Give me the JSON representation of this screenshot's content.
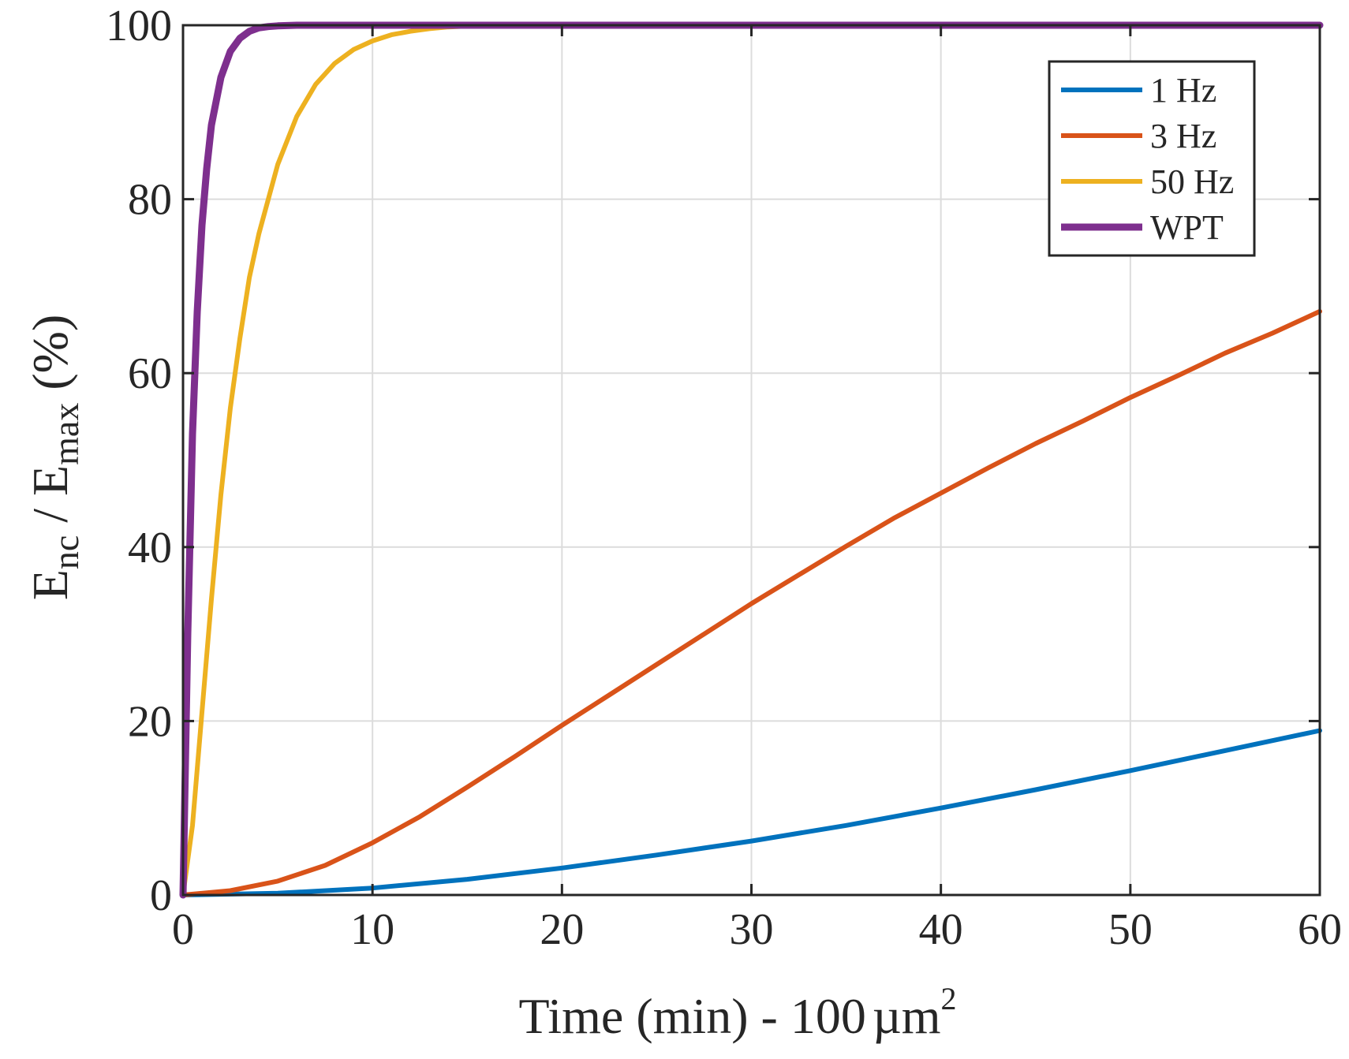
{
  "chart_data": {
    "type": "line",
    "title": "",
    "xlabel": "Time (min) - 100",
    "xlabel_unit": "µm",
    "xlabel_unit_sup": "2",
    "ylabel_main": "E",
    "ylabel_sub1": "nc",
    "ylabel_mid": " / E",
    "ylabel_sub2": "max",
    "ylabel_end": " (%)",
    "xlim": [
      0,
      60
    ],
    "ylim": [
      0,
      100
    ],
    "xticks": [
      0,
      10,
      20,
      30,
      40,
      50,
      60
    ],
    "yticks": [
      0,
      20,
      40,
      60,
      80,
      100
    ],
    "grid": true,
    "legend_position": "top-right",
    "series": [
      {
        "name": "1 Hz",
        "color": "#0072BD",
        "thick": false,
        "x": [
          0,
          5,
          10,
          15,
          20,
          25,
          30,
          35,
          40,
          45,
          50,
          55,
          60
        ],
        "y": [
          0,
          0.2,
          0.8,
          1.8,
          3.1,
          4.6,
          6.2,
          8.0,
          10.0,
          12.1,
          14.3,
          16.6,
          18.9
        ]
      },
      {
        "name": "3 Hz",
        "color": "#D95319",
        "thick": false,
        "x": [
          0,
          2.5,
          5,
          7.5,
          10,
          12.5,
          15,
          17.5,
          20,
          22.5,
          25,
          27.5,
          30,
          32.5,
          35,
          37.5,
          40,
          42.5,
          45,
          47.5,
          50,
          52.5,
          55,
          57.5,
          60
        ],
        "y": [
          0,
          0.5,
          1.6,
          3.4,
          6.0,
          9.0,
          12.4,
          15.9,
          19.5,
          23.0,
          26.5,
          30.0,
          33.5,
          36.8,
          40.1,
          43.3,
          46.2,
          49.1,
          51.9,
          54.5,
          57.2,
          59.7,
          62.3,
          64.6,
          67.1
        ]
      },
      {
        "name": "50 Hz",
        "color": "#EDB120",
        "thick": false,
        "x": [
          0,
          0.5,
          1,
          1.5,
          2,
          2.5,
          3,
          3.5,
          4,
          5,
          6,
          7,
          8,
          9,
          10,
          11,
          12,
          13,
          14,
          15,
          20,
          30,
          40,
          50,
          60
        ],
        "y": [
          0,
          8,
          21,
          34,
          46,
          56,
          64,
          71,
          76,
          84,
          89.5,
          93.2,
          95.6,
          97.2,
          98.2,
          98.9,
          99.3,
          99.6,
          99.8,
          99.9,
          100,
          100,
          100,
          100,
          100
        ]
      },
      {
        "name": "WPT",
        "color": "#7E2F8E",
        "thick": true,
        "x": [
          0,
          0.25,
          0.5,
          0.75,
          1,
          1.25,
          1.5,
          2,
          2.5,
          3,
          3.5,
          4,
          4.5,
          5,
          6,
          8,
          10,
          20,
          30,
          40,
          50,
          60
        ],
        "y": [
          0,
          30,
          53,
          67,
          77,
          83.5,
          88.5,
          94,
          97,
          98.5,
          99.3,
          99.7,
          99.85,
          99.93,
          100,
          100,
          100,
          100,
          100,
          100,
          100,
          100
        ]
      }
    ]
  }
}
